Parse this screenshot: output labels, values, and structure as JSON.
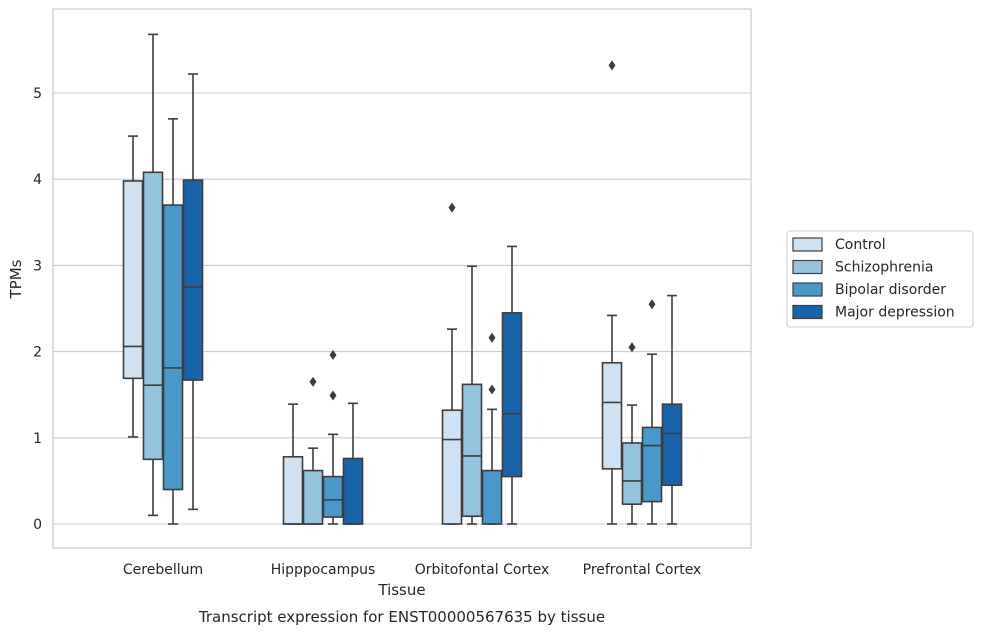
{
  "chart_data": {
    "type": "box",
    "title": "",
    "caption": "Transcript expression for ENST00000567635 by tissue",
    "xlabel": "Tissue",
    "ylabel": "TPMs",
    "ylim": [
      -0.28,
      5.97
    ],
    "yticks": [
      0,
      1,
      2,
      3,
      4,
      5
    ],
    "grid": "horizontal",
    "legend_position": "right",
    "categories": [
      "Cerebellum",
      "Hipppocampus",
      "Orbitofontal Cortex",
      "Prefrontal Cortex"
    ],
    "series": [
      {
        "name": "Control",
        "color": "#d0e1f2",
        "boxes": [
          {
            "whislo": 1.01,
            "q1": 1.69,
            "med": 2.06,
            "q3": 3.98,
            "whishi": 4.5,
            "fliers": []
          },
          {
            "whislo": 0.0,
            "q1": 0.0,
            "med": 0.0,
            "q3": 0.78,
            "whishi": 1.39,
            "fliers": []
          },
          {
            "whislo": 0.0,
            "q1": 0.0,
            "med": 0.98,
            "q3": 1.32,
            "whishi": 2.26,
            "fliers": [
              3.67
            ]
          },
          {
            "whislo": 0.0,
            "q1": 0.64,
            "med": 1.41,
            "q3": 1.87,
            "whishi": 2.42,
            "fliers": [
              5.32
            ]
          }
        ]
      },
      {
        "name": "Schizophrenia",
        "color": "#94c4df",
        "boxes": [
          {
            "whislo": 0.1,
            "q1": 0.75,
            "med": 1.61,
            "q3": 4.08,
            "whishi": 5.68,
            "fliers": []
          },
          {
            "whislo": 0.0,
            "q1": 0.0,
            "med": 0.0,
            "q3": 0.62,
            "whishi": 0.88,
            "fliers": [
              1.65
            ]
          },
          {
            "whislo": 0.0,
            "q1": 0.09,
            "med": 0.79,
            "q3": 1.62,
            "whishi": 2.99,
            "fliers": []
          },
          {
            "whislo": 0.0,
            "q1": 0.23,
            "med": 0.5,
            "q3": 0.94,
            "whishi": 1.38,
            "fliers": [
              2.05
            ]
          }
        ]
      },
      {
        "name": "Bipolar disorder",
        "color": "#4a98c9",
        "boxes": [
          {
            "whislo": 0.0,
            "q1": 0.4,
            "med": 1.81,
            "q3": 3.7,
            "whishi": 4.7,
            "fliers": []
          },
          {
            "whislo": 0.0,
            "q1": 0.08,
            "med": 0.28,
            "q3": 0.55,
            "whishi": 1.04,
            "fliers": [
              1.49,
              1.96
            ]
          },
          {
            "whislo": 0.0,
            "q1": 0.0,
            "med": 0.0,
            "q3": 0.62,
            "whishi": 1.33,
            "fliers": [
              1.56,
              2.16
            ]
          },
          {
            "whislo": 0.0,
            "q1": 0.26,
            "med": 0.91,
            "q3": 1.12,
            "whishi": 1.97,
            "fliers": [
              2.55
            ]
          }
        ]
      },
      {
        "name": "Major depression",
        "color": "#1764ab",
        "boxes": [
          {
            "whislo": 0.17,
            "q1": 1.67,
            "med": 2.75,
            "q3": 3.99,
            "whishi": 5.22,
            "fliers": []
          },
          {
            "whislo": 0.0,
            "q1": 0.0,
            "med": 0.0,
            "q3": 0.76,
            "whishi": 1.4,
            "fliers": []
          },
          {
            "whislo": 0.0,
            "q1": 0.55,
            "med": 1.28,
            "q3": 2.45,
            "whishi": 3.22,
            "fliers": []
          },
          {
            "whislo": 0.0,
            "q1": 0.45,
            "med": 1.05,
            "q3": 1.39,
            "whishi": 2.65,
            "fliers": []
          }
        ]
      }
    ]
  }
}
